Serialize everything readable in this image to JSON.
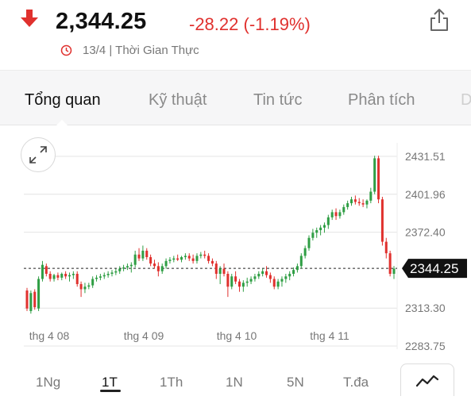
{
  "header": {
    "price": "2,344.25",
    "change": "-28.22 (-1.19%)",
    "subtitle": "13/4 | Thời Gian Thực",
    "down_color": "#e0312e",
    "icons": {
      "trend": "down-arrow-icon",
      "share": "share-icon",
      "time": "clock-icon"
    }
  },
  "tabs": [
    {
      "label": "Tổng quan",
      "active": true
    },
    {
      "label": "Kỹ thuật",
      "active": false
    },
    {
      "label": "Tin tức",
      "active": false
    },
    {
      "label": "Phân tích",
      "active": false
    },
    {
      "label": "D",
      "active": false
    }
  ],
  "ranges": [
    {
      "label": "1Ng",
      "active": false
    },
    {
      "label": "1T",
      "active": true
    },
    {
      "label": "1Th",
      "active": false
    },
    {
      "label": "1N",
      "active": false
    },
    {
      "label": "5N",
      "active": false
    },
    {
      "label": "T.đa",
      "active": false
    }
  ],
  "chart_data": {
    "type": "candlestick",
    "y_ticks": [
      "2431.51",
      "2401.96",
      "2372.40",
      "2313.30",
      "2283.75"
    ],
    "y_range": [
      2283.75,
      2431.51
    ],
    "x_ticks": [
      "thg 4 08",
      "thg 4 09",
      "thg 4 10",
      "thg 4 11"
    ],
    "last_price_label": "2344.25",
    "last_price": 2344.25,
    "colors": {
      "up": "#2f9e44",
      "down": "#e0312e"
    },
    "grid": true,
    "candles": [
      [
        2327,
        2329,
        2311,
        2313
      ],
      [
        2311,
        2327,
        2309,
        2325
      ],
      [
        2326,
        2328,
        2312,
        2314
      ],
      [
        2313,
        2338,
        2311,
        2336
      ],
      [
        2336,
        2350,
        2334,
        2347
      ],
      [
        2346,
        2348,
        2338,
        2340
      ],
      [
        2340,
        2342,
        2334,
        2336
      ],
      [
        2336,
        2340,
        2334,
        2339
      ],
      [
        2339,
        2341,
        2335,
        2337
      ],
      [
        2337,
        2341,
        2335,
        2340
      ],
      [
        2340,
        2342,
        2336,
        2338
      ],
      [
        2338,
        2341,
        2334,
        2339
      ],
      [
        2339,
        2342,
        2336,
        2340
      ],
      [
        2340,
        2342,
        2330,
        2332
      ],
      [
        2332,
        2334,
        2322,
        2328
      ],
      [
        2328,
        2333,
        2325,
        2330
      ],
      [
        2330,
        2333,
        2328,
        2331
      ],
      [
        2331,
        2338,
        2329,
        2336
      ],
      [
        2336,
        2339,
        2334,
        2337
      ],
      [
        2337,
        2340,
        2335,
        2338
      ],
      [
        2338,
        2341,
        2336,
        2339
      ],
      [
        2339,
        2342,
        2337,
        2340
      ],
      [
        2340,
        2343,
        2338,
        2341
      ],
      [
        2341,
        2344,
        2339,
        2342
      ],
      [
        2342,
        2346,
        2340,
        2344
      ],
      [
        2344,
        2347,
        2342,
        2345
      ],
      [
        2345,
        2348,
        2343,
        2346
      ],
      [
        2346,
        2349,
        2341,
        2347
      ],
      [
        2347,
        2358,
        2345,
        2355
      ],
      [
        2355,
        2360,
        2350,
        2352
      ],
      [
        2352,
        2362,
        2350,
        2358
      ],
      [
        2358,
        2360,
        2351,
        2353
      ],
      [
        2353,
        2355,
        2346,
        2348
      ],
      [
        2348,
        2351,
        2344,
        2346
      ],
      [
        2346,
        2349,
        2338,
        2342
      ],
      [
        2342,
        2348,
        2340,
        2346
      ],
      [
        2346,
        2352,
        2344,
        2350
      ],
      [
        2350,
        2353,
        2348,
        2351
      ],
      [
        2351,
        2354,
        2349,
        2352
      ],
      [
        2352,
        2355,
        2350,
        2351
      ],
      [
        2351,
        2354,
        2349,
        2353
      ],
      [
        2353,
        2356,
        2351,
        2354
      ],
      [
        2354,
        2356,
        2350,
        2352
      ],
      [
        2352,
        2355,
        2348,
        2350
      ],
      [
        2350,
        2356,
        2348,
        2354
      ],
      [
        2354,
        2357,
        2352,
        2355
      ],
      [
        2355,
        2358,
        2352,
        2354
      ],
      [
        2354,
        2356,
        2348,
        2350
      ],
      [
        2350,
        2352,
        2346,
        2348
      ],
      [
        2348,
        2350,
        2336,
        2340
      ],
      [
        2340,
        2346,
        2332,
        2344
      ],
      [
        2344,
        2348,
        2338,
        2340
      ],
      [
        2340,
        2342,
        2322,
        2330
      ],
      [
        2330,
        2340,
        2328,
        2338
      ],
      [
        2338,
        2342,
        2332,
        2334
      ],
      [
        2334,
        2336,
        2326,
        2330
      ],
      [
        2330,
        2335,
        2326,
        2333
      ],
      [
        2333,
        2337,
        2330,
        2334
      ],
      [
        2334,
        2338,
        2332,
        2336
      ],
      [
        2336,
        2340,
        2334,
        2338
      ],
      [
        2338,
        2342,
        2336,
        2340
      ],
      [
        2340,
        2344,
        2338,
        2342
      ],
      [
        2342,
        2346,
        2337,
        2339
      ],
      [
        2339,
        2341,
        2333,
        2336
      ],
      [
        2336,
        2338,
        2328,
        2330
      ],
      [
        2330,
        2336,
        2328,
        2334
      ],
      [
        2334,
        2338,
        2330,
        2336
      ],
      [
        2336,
        2340,
        2333,
        2338
      ],
      [
        2338,
        2342,
        2335,
        2340
      ],
      [
        2340,
        2345,
        2338,
        2343
      ],
      [
        2343,
        2348,
        2341,
        2346
      ],
      [
        2346,
        2356,
        2344,
        2354
      ],
      [
        2354,
        2362,
        2352,
        2360
      ],
      [
        2360,
        2370,
        2358,
        2368
      ],
      [
        2368,
        2375,
        2366,
        2372
      ],
      [
        2372,
        2376,
        2368,
        2374
      ],
      [
        2374,
        2378,
        2370,
        2376
      ],
      [
        2376,
        2380,
        2372,
        2378
      ],
      [
        2378,
        2386,
        2375,
        2384
      ],
      [
        2384,
        2390,
        2382,
        2388
      ],
      [
        2388,
        2391,
        2382,
        2385
      ],
      [
        2385,
        2390,
        2383,
        2388
      ],
      [
        2388,
        2394,
        2386,
        2392
      ],
      [
        2392,
        2397,
        2390,
        2395
      ],
      [
        2395,
        2400,
        2393,
        2398
      ],
      [
        2398,
        2401,
        2394,
        2396
      ],
      [
        2396,
        2399,
        2393,
        2395
      ],
      [
        2395,
        2398,
        2392,
        2394
      ],
      [
        2394,
        2398,
        2391,
        2397
      ],
      [
        2397,
        2407,
        2395,
        2404
      ],
      [
        2404,
        2432,
        2402,
        2430
      ],
      [
        2430,
        2432,
        2395,
        2398
      ],
      [
        2398,
        2400,
        2362,
        2365
      ],
      [
        2365,
        2368,
        2352,
        2356
      ],
      [
        2356,
        2358,
        2338,
        2340
      ],
      [
        2340,
        2346,
        2336,
        2344
      ]
    ]
  }
}
